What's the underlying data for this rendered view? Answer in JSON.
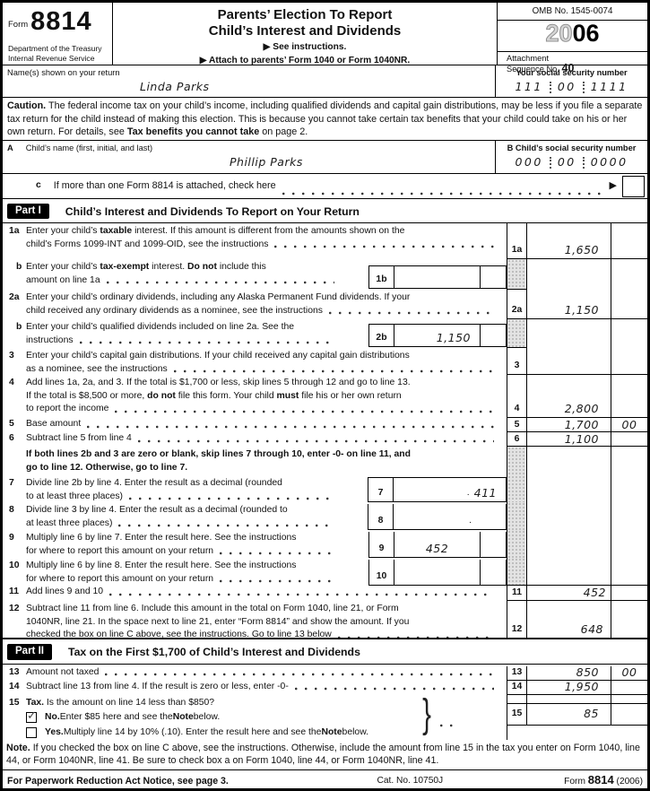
{
  "header": {
    "form_word": "Form",
    "form_number": "8814",
    "dept1": "Department of the Treasury",
    "dept2": "Internal Revenue Service",
    "title1": "Parents’ Election To Report",
    "title2": "Child’s Interest and Dividends",
    "see": "▶ See instructions.",
    "attach_note": "▶ Attach to parents’ Form 1040 or Form 1040NR.",
    "omb": "OMB No. 1545-0074",
    "year_outline": "20",
    "year_solid": "06",
    "attachment1": "Attachment",
    "attachment2": "Sequence No.",
    "attachment_no": "40"
  },
  "name_row": {
    "label": "Name(s) shown on your return",
    "value": "Linda Parks",
    "ssn_label": "Your social security number",
    "ssn1": "111",
    "ssn2": "00",
    "ssn3": "1111"
  },
  "caution_parts": [
    {
      "t": "Caution.",
      "b": 1
    },
    {
      "t": " The federal income tax on your child’s income, including qualified dividends and capital gain distributions, may be less if you file a separate tax return for the child instead of making this election. This is because you cannot take certain tax benefits that your child could take on his or her own return. For details, see "
    },
    {
      "t": "Tax benefits you cannot take",
      "b": 1
    },
    {
      "t": " on page 2."
    }
  ],
  "child_row": {
    "a_letter": "A",
    "a_label": "Child’s name (first, initial, and last)",
    "a_value": "Phillip Parks",
    "b_letter": "B",
    "b_label": "Child’s social security number",
    "ssn1": "000",
    "ssn2": "00",
    "ssn3": "0000"
  },
  "line_c": {
    "letter": "c",
    "text": "If more than one Form 8814 is attached, check here",
    "arrow": "▶"
  },
  "part1": {
    "tag": "Part I",
    "title": "Child’s Interest and Dividends To Report on Your Return"
  },
  "part2": {
    "tag": "Part II",
    "title": "Tax on the First $1,700 of Child’s Interest and Dividends"
  },
  "lines": {
    "l1a": {
      "ln": "1a",
      "col": "1a",
      "amount": "1,650",
      "cents": "",
      "rows": [
        [
          {
            "t": "Enter your child’s "
          },
          {
            "t": "taxable",
            "b": 1
          },
          {
            "t": " interest. If this amount is different from the amounts shown on the"
          }
        ],
        [
          {
            "t": "child’s Forms 1099-INT and 1099-OID, see the instructions"
          }
        ]
      ]
    },
    "l1b": {
      "ln": "b",
      "box": "1b",
      "box_amount": "",
      "rows": [
        [
          {
            "t": "Enter your child’s "
          },
          {
            "t": "tax-exempt",
            "b": 1
          },
          {
            "t": " interest. "
          },
          {
            "t": "Do not",
            "b": 1
          },
          {
            "t": " include this"
          }
        ],
        [
          {
            "t": "amount on line 1a"
          }
        ]
      ]
    },
    "l2a": {
      "ln": "2a",
      "col": "2a",
      "amount": "1,150",
      "cents": "",
      "rows": [
        [
          {
            "t": "Enter your child’s ordinary dividends, including any Alaska Permanent Fund dividends. If your"
          }
        ],
        [
          {
            "t": "child received any ordinary dividends as a nominee, see the instructions"
          }
        ]
      ]
    },
    "l2b": {
      "ln": "b",
      "box": "2b",
      "box_amount": "1,150",
      "rows": [
        [
          {
            "t": "Enter your child’s qualified dividends included on line 2a. See the"
          }
        ],
        [
          {
            "t": "instructions"
          }
        ]
      ]
    },
    "l3": {
      "ln": "3",
      "col": "3",
      "amount": "",
      "cents": "",
      "rows": [
        [
          {
            "t": "Enter your child’s capital gain distributions. If your child received any capital gain distributions"
          }
        ],
        [
          {
            "t": "as a nominee, see the instructions"
          }
        ]
      ]
    },
    "l4": {
      "ln": "4",
      "col": "4",
      "amount": "2,800",
      "cents": "",
      "rows": [
        [
          {
            "t": "Add lines 1a, 2a, and 3. If the total is $1,700 or less, skip lines 5 through 12 and go to line 13."
          }
        ],
        [
          {
            "t": "If the total is $8,500 or more, "
          },
          {
            "t": "do not",
            "b": 1
          },
          {
            "t": " file this form. Your child "
          },
          {
            "t": "must",
            "b": 1
          },
          {
            "t": " file his or her own return"
          }
        ],
        [
          {
            "t": "to report the income"
          }
        ]
      ]
    },
    "l5": {
      "ln": "5",
      "text": "Base amount",
      "amount": "1,700",
      "cents": "00"
    },
    "l6": {
      "ln": "6",
      "text": "Subtract line 5 from line 4",
      "amount": "1,100",
      "cents": ""
    },
    "l6note": {
      "rows": [
        [
          {
            "t": "If both lines 2b and 3 are zero or blank, skip lines 7 through 10, enter -0- on line 11, and",
            "b": 1
          }
        ],
        [
          {
            "t": "go to line 12. Otherwise, go to line 7.",
            "b": 1
          }
        ]
      ]
    },
    "l7": {
      "ln": "7",
      "box": "7",
      "dec": ".",
      "box_value": "411",
      "rows": [
        [
          {
            "t": "Divide line 2b by line 4. Enter the result as a decimal (rounded"
          }
        ],
        [
          {
            "t": "to at least three places)"
          }
        ]
      ]
    },
    "l8": {
      "ln": "8",
      "box": "8",
      "dec": ".",
      "box_value": "",
      "rows": [
        [
          {
            "t": "Divide line 3 by line 4. Enter the result as a decimal (rounded to"
          }
        ],
        [
          {
            "t": "at least three places)"
          }
        ]
      ]
    },
    "l9": {
      "ln": "9",
      "box": "9",
      "box_value": "452",
      "rows": [
        [
          {
            "t": "Multiply line 6 by line 7. Enter the result here. See the instructions"
          }
        ],
        [
          {
            "t": "for where to report this amount on your return"
          }
        ]
      ]
    },
    "l10": {
      "ln": "10",
      "box": "10",
      "box_value": "",
      "rows": [
        [
          {
            "t": "Multiply line 6 by line 8. Enter the result here. See the instructions"
          }
        ],
        [
          {
            "t": "for where to report this amount on your return"
          }
        ]
      ]
    },
    "l11": {
      "ln": "11",
      "text": "Add lines 9 and 10",
      "amount": "452",
      "cents": ""
    },
    "l12": {
      "ln": "12",
      "col": "12",
      "amount": "648",
      "cents": "",
      "rows": [
        [
          {
            "t": "Subtract line 11 from line 6. Include this amount in the total on Form 1040, line 21, or Form"
          }
        ],
        [
          {
            "t": "1040NR, line 21. In the space next to line 21, enter “Form 8814” and show the amount. If you"
          }
        ],
        [
          {
            "t": "checked the box on line C above, see the instructions. Go to line 13 below"
          }
        ]
      ]
    },
    "l13": {
      "ln": "13",
      "text": "Amount not taxed",
      "amount": "850",
      "cents": "00"
    },
    "l14": {
      "ln": "14",
      "text": "Subtract line 13 from line 4. If the result is zero or less, enter -0-",
      "amount": "1,950",
      "cents": ""
    },
    "l15": {
      "ln": "15",
      "col": "15",
      "amount": "85",
      "cents": "",
      "question_parts": [
        {
          "t": "Tax.",
          "b": 1
        },
        {
          "t": "  Is the amount on line 14 less than $850?"
        }
      ],
      "no_parts": [
        {
          "t": "No.",
          "b": 1
        },
        {
          "t": "  Enter $85 here and see the "
        },
        {
          "t": "Note",
          "b": 1
        },
        {
          "t": " below."
        }
      ],
      "yes_parts": [
        {
          "t": "Yes.",
          "b": 1
        },
        {
          "t": "  Multiply line 14 by 10% (.10). Enter the result here and see the "
        },
        {
          "t": "Note",
          "b": 1
        },
        {
          "t": " below."
        }
      ],
      "checkmark": "✓",
      "brace": "}"
    }
  },
  "note_parts": [
    {
      "t": "Note.",
      "b": 1
    },
    {
      "t": " If you checked the box on line C above, see the instructions. Otherwise, include the amount from line 15 in the tax you enter on Form 1040, line 44, or Form 1040NR, line 41. Be sure to check box a on Form 1040, line 44, or Form 1040NR, line 41."
    }
  ],
  "footer": {
    "left": "For Paperwork Reduction Act Notice, see page 3.",
    "cat": "Cat. No. 10750J",
    "form_word": "Form",
    "form_no": "8814",
    "year": "(2006)"
  }
}
